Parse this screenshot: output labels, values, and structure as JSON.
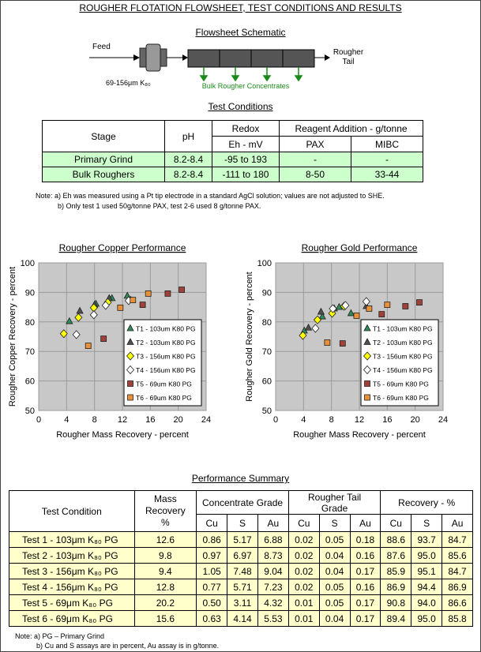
{
  "header": {
    "title": "ROUGHER FLOTATION FLOWSHEET, TEST CONDITIONS AND RESULTS"
  },
  "schematic": {
    "title": "Flowsheet Schematic",
    "feed": "Feed",
    "size": "69-156μm K₈₀",
    "concentrates": "Bulk Rougher Concentrates",
    "tail": "Rougher Tail"
  },
  "conditions": {
    "title": "Test Conditions",
    "header": {
      "stage": "Stage",
      "ph": "pH",
      "redox": "Redox",
      "redox_unit": "Eh - mV",
      "reagent": "Reagent Addition - g/tonne",
      "pax": "PAX",
      "mibc": "MIBC"
    },
    "rows": [
      [
        "Primary Grind",
        "8.2-8.4",
        "-95 to 193",
        "-",
        "-"
      ],
      [
        "Bulk Roughers",
        "8.2-8.4",
        "-111 to 180",
        "8-50",
        "33-44"
      ]
    ],
    "notes": [
      "Note:  a) Eh was measured using a Pt tip electrode in a standard AgCl solution;  values are not adjusted to SHE.",
      "b) Only test 1 used 50g/tonne PAX, test 2-6 used 8 g/tonne PAX."
    ]
  },
  "chart_data": [
    {
      "type": "scatter",
      "title": "Rougher Copper Performance",
      "x_label": "Rougher Mass Recovery - percent",
      "y_label": "Rougher Copper Recovery - percent",
      "xlim": [
        0,
        24
      ],
      "xticks": [
        0,
        4,
        8,
        12,
        16,
        20,
        24
      ],
      "ylim": [
        50,
        100
      ],
      "yticks": [
        50,
        60,
        70,
        80,
        90,
        100
      ],
      "grid": true,
      "legend": "lower right",
      "series": [
        {
          "name": "T1 - 103um K80 PG",
          "color": "#2e8b57",
          "marker": "triangle",
          "x": [
            4.4,
            8.2,
            10.5,
            12.7
          ],
          "values": [
            80.2,
            86.1,
            88.0,
            88.8
          ]
        },
        {
          "name": "T2 - 103um K80 PG",
          "color": "#505050",
          "marker": "triangle",
          "x": [
            5.9,
            8.0,
            10.1,
            13.2
          ],
          "values": [
            83.7,
            85.8,
            88.0,
            87.4
          ]
        },
        {
          "name": "T3 - 156um K80 PG",
          "color": "#ffff00",
          "marker": "diamond",
          "x": [
            3.6,
            5.7,
            7.9,
            9.9
          ],
          "values": [
            76.0,
            81.5,
            84.8,
            86.6
          ]
        },
        {
          "name": "T4 - 156um K80 PG",
          "color": "#ffffff",
          "marker": "diamond",
          "x": [
            5.4,
            7.9,
            9.6,
            12.9
          ],
          "values": [
            75.7,
            82.4,
            85.6,
            87.2
          ]
        },
        {
          "name": "T5 - 69um K80 PG",
          "color": "#a0413a",
          "marker": "square",
          "x": [
            9.3,
            14.9,
            18.5,
            20.5
          ],
          "values": [
            74.3,
            85.8,
            89.6,
            90.9
          ]
        },
        {
          "name": "T6 - 69um K80 PG",
          "color": "#e8903a",
          "marker": "square",
          "x": [
            7.1,
            11.7,
            13.5,
            15.7
          ],
          "values": [
            71.9,
            84.8,
            87.4,
            89.6
          ]
        }
      ]
    },
    {
      "type": "scatter",
      "title": "Rougher Gold Performance",
      "x_label": "Rougher Mass Recovery - percent",
      "y_label": "Rougher Gold Recovery - percent",
      "xlim": [
        0,
        24
      ],
      "xticks": [
        0,
        4,
        8,
        12,
        16,
        20,
        24
      ],
      "ylim": [
        50,
        100
      ],
      "yticks": [
        50,
        60,
        70,
        80,
        90,
        100
      ],
      "grid": true,
      "legend": "lower right",
      "series": [
        {
          "name": "T1 - 103um K80 PG",
          "color": "#2e8b57",
          "marker": "triangle",
          "x": [
            4.1,
            6.7,
            9.1,
            10.8
          ],
          "values": [
            77.0,
            81.8,
            85.0,
            82.9
          ]
        },
        {
          "name": "T2 - 103um K80 PG",
          "color": "#505050",
          "marker": "triangle",
          "x": [
            4.7,
            6.5,
            8.4,
            13.0
          ],
          "values": [
            78.0,
            83.4,
            84.5,
            85.3
          ]
        },
        {
          "name": "T3 - 156um K80 PG",
          "color": "#ffff00",
          "marker": "diamond",
          "x": [
            3.9,
            6.0,
            8.1,
            9.8
          ],
          "values": [
            75.4,
            80.7,
            82.9,
            85.3
          ]
        },
        {
          "name": "T4 - 156um K80 PG",
          "color": "#ffffff",
          "marker": "diamond",
          "x": [
            5.7,
            8.2,
            10.0,
            13.0
          ],
          "values": [
            77.8,
            84.5,
            85.6,
            86.9
          ]
        },
        {
          "name": "T5 - 69um K80 PG",
          "color": "#a0413a",
          "marker": "square",
          "x": [
            9.6,
            15.2,
            18.6,
            20.6
          ],
          "values": [
            72.7,
            82.6,
            85.3,
            86.6
          ]
        },
        {
          "name": "T6 - 69um K80 PG",
          "color": "#e8903a",
          "marker": "square",
          "x": [
            7.4,
            11.6,
            13.4,
            16.0
          ],
          "values": [
            73.0,
            82.1,
            84.5,
            85.8
          ]
        }
      ]
    }
  ],
  "summary": {
    "title": "Performance Summary",
    "header": {
      "condition": "Test Condition",
      "mass": "Mass Recovery",
      "mass_unit": "%",
      "groups": [
        "Concentrate Grade",
        "Rougher Tail Grade",
        "Recovery - %"
      ],
      "elements": [
        "Cu",
        "S",
        "Au",
        "Cu",
        "S",
        "Au",
        "Cu",
        "S",
        "Au"
      ]
    },
    "rows": [
      [
        "Test 1 - 103μm K₈₀ PG",
        "12.6",
        "0.86",
        "5.17",
        "6.88",
        "0.02",
        "0.05",
        "0.18",
        "88.6",
        "93.7",
        "84.7"
      ],
      [
        "Test 2 - 103μm K₈₀ PG",
        "9.8",
        "0.97",
        "6.97",
        "8.73",
        "0.02",
        "0.04",
        "0.16",
        "87.6",
        "95.0",
        "85.6"
      ],
      [
        "Test 3 - 156μm K₈₀ PG",
        "9.4",
        "1.05",
        "7.48",
        "9.04",
        "0.02",
        "0.04",
        "0.17",
        "85.9",
        "95.1",
        "84.7"
      ],
      [
        "Test 4 - 156μm K₈₀ PG",
        "12.8",
        "0.77",
        "5.71",
        "7.23",
        "0.02",
        "0.05",
        "0.16",
        "86.9",
        "94.4",
        "86.9"
      ],
      [
        "Test 5 - 69μm K₈₀ PG",
        "20.2",
        "0.50",
        "3.11",
        "4.32",
        "0.01",
        "0.05",
        "0.17",
        "90.8",
        "94.0",
        "86.6"
      ],
      [
        "Test 6 - 69μm K₈₀ PG",
        "15.6",
        "0.63",
        "4.14",
        "5.53",
        "0.01",
        "0.04",
        "0.17",
        "89.4",
        "95.0",
        "85.8"
      ]
    ],
    "notes": [
      "Note: a) PG – Primary Grind",
      "b) Cu and S assays are in percent, Au assay is in g/tonne."
    ]
  }
}
